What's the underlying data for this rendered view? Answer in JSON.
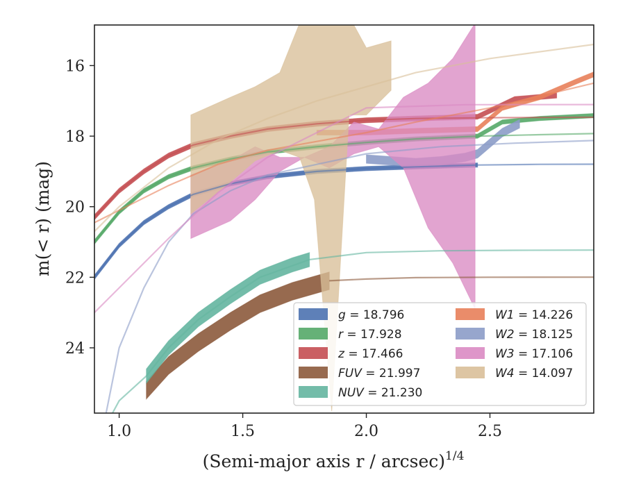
{
  "chart_data": {
    "type": "line",
    "title": "",
    "xlabel": "(Semi-major axis r / arcsec)",
    "xlabel_sup": "1/4",
    "ylabel": "m(< r) (mag)",
    "xlim": [
      0.9,
      2.92
    ],
    "ylim": [
      25.85,
      14.85
    ],
    "y_inverted": true,
    "x_ticks": [
      "1.0",
      "1.5",
      "2.0",
      "2.5"
    ],
    "y_ticks": [
      "16",
      "18",
      "20",
      "22",
      "24"
    ],
    "grid": false,
    "legend_position": "lower-right",
    "series": [
      {
        "key": "g",
        "name": "g = 18.796",
        "color": "#4c72b0",
        "band_x": [
          0.9,
          1.0,
          1.1,
          1.2,
          1.3,
          1.45,
          1.6,
          1.8,
          2.0,
          2.2,
          2.45
        ],
        "band_y": [
          22.0,
          21.1,
          20.45,
          20.0,
          19.65,
          19.35,
          19.15,
          19.0,
          18.92,
          18.87,
          18.82
        ],
        "band_halfwidth": 0.06,
        "line_x": [
          0.9,
          1.0,
          1.1,
          1.2,
          1.3,
          1.45,
          1.6,
          1.8,
          2.0,
          2.2,
          2.45,
          2.7,
          2.92
        ],
        "line_y": [
          22.0,
          21.1,
          20.45,
          20.0,
          19.65,
          19.35,
          19.15,
          19.0,
          18.92,
          18.87,
          18.82,
          18.8,
          18.796
        ]
      },
      {
        "key": "r",
        "name": "r = 17.928",
        "color": "#55a868",
        "band_x": [
          0.9,
          1.0,
          1.1,
          1.2,
          1.3,
          1.45,
          1.6,
          1.8,
          2.0,
          2.2,
          2.45,
          2.55,
          2.7,
          2.92
        ],
        "band_y": [
          21.0,
          20.15,
          19.55,
          19.15,
          18.9,
          18.65,
          18.45,
          18.3,
          18.18,
          18.08,
          18.0,
          17.6,
          17.5,
          17.42
        ],
        "band_halfwidth": 0.06,
        "line_x": [
          0.9,
          1.0,
          1.1,
          1.2,
          1.3,
          1.45,
          1.6,
          1.8,
          2.0,
          2.2,
          2.45,
          2.7,
          2.92
        ],
        "line_y": [
          21.0,
          20.15,
          19.55,
          19.15,
          18.9,
          18.65,
          18.45,
          18.3,
          18.18,
          18.08,
          18.0,
          17.96,
          17.928
        ]
      },
      {
        "key": "z",
        "name": "z = 17.466",
        "color": "#c44e52",
        "band_x": [
          0.9,
          1.0,
          1.1,
          1.2,
          1.3,
          1.45,
          1.6,
          1.8,
          2.0,
          2.2,
          2.45,
          2.6,
          2.77
        ],
        "band_y": [
          20.3,
          19.55,
          19.0,
          18.55,
          18.25,
          18.0,
          17.8,
          17.65,
          17.55,
          17.5,
          17.45,
          16.95,
          16.85
        ],
        "band_halfwidth": 0.07,
        "line_x": [
          0.9,
          1.0,
          1.1,
          1.2,
          1.3,
          1.45,
          1.6,
          1.8,
          2.0,
          2.2,
          2.45,
          2.7,
          2.92
        ],
        "line_y": [
          20.3,
          19.55,
          19.0,
          18.55,
          18.25,
          18.0,
          17.8,
          17.65,
          17.55,
          17.5,
          17.48,
          17.47,
          17.466
        ]
      },
      {
        "key": "FUV",
        "name": "FUV = 21.997",
        "color": "#8c5a3c",
        "band_x": [
          1.11,
          1.2,
          1.32,
          1.45,
          1.57,
          1.7,
          1.85
        ],
        "band_y": [
          25.2,
          24.5,
          23.85,
          23.25,
          22.75,
          22.4,
          22.1
        ],
        "band_halfwidth": 0.25,
        "line_x": [
          1.85,
          2.0,
          2.2,
          2.5,
          2.92
        ],
        "line_y": [
          22.1,
          22.05,
          22.01,
          22.0,
          21.997
        ]
      },
      {
        "key": "NUV",
        "name": "NUV = 21.230",
        "color": "#64b5a0",
        "band_x": [
          1.11,
          1.2,
          1.32,
          1.45,
          1.57,
          1.7,
          1.77
        ],
        "band_y": [
          24.8,
          24.0,
          23.2,
          22.55,
          22.0,
          21.65,
          21.5
        ],
        "band_halfwidth": 0.2,
        "line_x": [
          0.9,
          1.0,
          1.11,
          1.2,
          1.32,
          1.45,
          1.57,
          1.77,
          2.0,
          2.3,
          2.6,
          2.92
        ],
        "line_y": [
          26.8,
          25.5,
          24.8,
          24.0,
          23.2,
          22.55,
          22.0,
          21.5,
          21.3,
          21.25,
          21.235,
          21.23
        ]
      },
      {
        "key": "W1",
        "name": "W1 = 14.226",
        "color": "#e8805a",
        "band_x": [
          1.8,
          2.0,
          2.2,
          2.45,
          2.55,
          2.7,
          2.85,
          2.92
        ],
        "band_y": [
          17.9,
          17.9,
          17.85,
          17.8,
          17.2,
          16.9,
          16.45,
          16.25
        ],
        "band_halfwidth": 0.07,
        "line_x": [
          0.9,
          1.0,
          1.2,
          1.4,
          1.6,
          1.8,
          2.0,
          2.2,
          2.5,
          2.92
        ],
        "line_y": [
          20.45,
          20.1,
          19.4,
          18.8,
          18.4,
          18.15,
          17.9,
          17.6,
          17.2,
          16.5
        ]
      },
      {
        "key": "W2",
        "name": "W2 = 18.125",
        "color": "#8c9cc8",
        "band_x": [
          2.0,
          2.1,
          2.2,
          2.3,
          2.4,
          2.45,
          2.5,
          2.55,
          2.62
        ],
        "band_y": [
          18.65,
          18.7,
          18.75,
          18.7,
          18.6,
          18.5,
          18.2,
          17.9,
          17.65
        ],
        "band_halfwidth": 0.12,
        "line_x": [
          0.9,
          1.0,
          1.1,
          1.2,
          1.3,
          1.45,
          1.6,
          1.8,
          2.0,
          2.3,
          2.6,
          2.92
        ],
        "line_y": [
          27.5,
          24.0,
          22.3,
          21.0,
          20.2,
          19.55,
          19.1,
          18.8,
          18.5,
          18.3,
          18.2,
          18.125
        ]
      },
      {
        "key": "W3",
        "name": "W3 = 17.106",
        "color": "#da8bc3",
        "band_x": [
          1.29,
          1.45,
          1.55,
          1.65,
          1.75,
          1.85,
          1.95,
          2.05,
          2.15,
          2.25,
          2.35,
          2.44
        ],
        "band_upper": [
          19.1,
          18.7,
          18.3,
          18.6,
          18.6,
          18.3,
          17.6,
          17.8,
          16.9,
          16.5,
          15.8,
          14.8
        ],
        "band_lower": [
          20.9,
          20.4,
          19.8,
          19.0,
          18.6,
          18.9,
          18.5,
          18.3,
          18.9,
          20.6,
          21.6,
          22.9
        ],
        "line_x": [
          0.9,
          1.0,
          1.2,
          1.4,
          1.6,
          1.8,
          2.0,
          2.4,
          2.92
        ],
        "line_y": [
          23.0,
          22.3,
          20.9,
          19.6,
          18.6,
          17.9,
          17.2,
          17.11,
          17.106
        ]
      },
      {
        "key": "W4",
        "name": "W4 = 14.097",
        "color": "#d9bf99",
        "band_x": [
          1.29,
          1.45,
          1.55,
          1.65,
          1.73,
          1.79,
          1.86,
          1.93,
          2.0,
          2.1
        ],
        "band_upper": [
          17.4,
          16.9,
          16.6,
          16.2,
          14.8,
          14.5,
          14.7,
          14.6,
          15.5,
          15.3
        ],
        "band_lower": [
          20.2,
          19.3,
          18.7,
          18.4,
          18.6,
          19.8,
          25.8,
          17.4,
          17.4,
          16.7
        ],
        "line_x": [
          0.9,
          1.0,
          1.2,
          1.4,
          1.6,
          1.8,
          2.0,
          2.2,
          2.5,
          2.92
        ],
        "line_y": [
          20.7,
          20.0,
          18.9,
          18.1,
          17.5,
          17.0,
          16.6,
          16.2,
          15.8,
          15.4
        ]
      }
    ],
    "legend": {
      "columns": [
        [
          {
            "key": "g",
            "sym": "g",
            "eq": " = 18.796"
          },
          {
            "key": "r",
            "sym": "r",
            "eq": " = 17.928"
          },
          {
            "key": "z",
            "sym": "z",
            "eq": " = 17.466"
          },
          {
            "key": "FUV",
            "sym": "FUV",
            "eq": " = 21.997"
          },
          {
            "key": "NUV",
            "sym": "NUV",
            "eq": " = 21.230"
          }
        ],
        [
          {
            "key": "W1",
            "sym": "W1",
            "eq": " = 14.226"
          },
          {
            "key": "W2",
            "sym": "W2",
            "eq": " = 18.125"
          },
          {
            "key": "W3",
            "sym": "W3",
            "eq": " = 17.106"
          },
          {
            "key": "W4",
            "sym": "W4",
            "eq": " = 14.097"
          }
        ]
      ]
    }
  }
}
